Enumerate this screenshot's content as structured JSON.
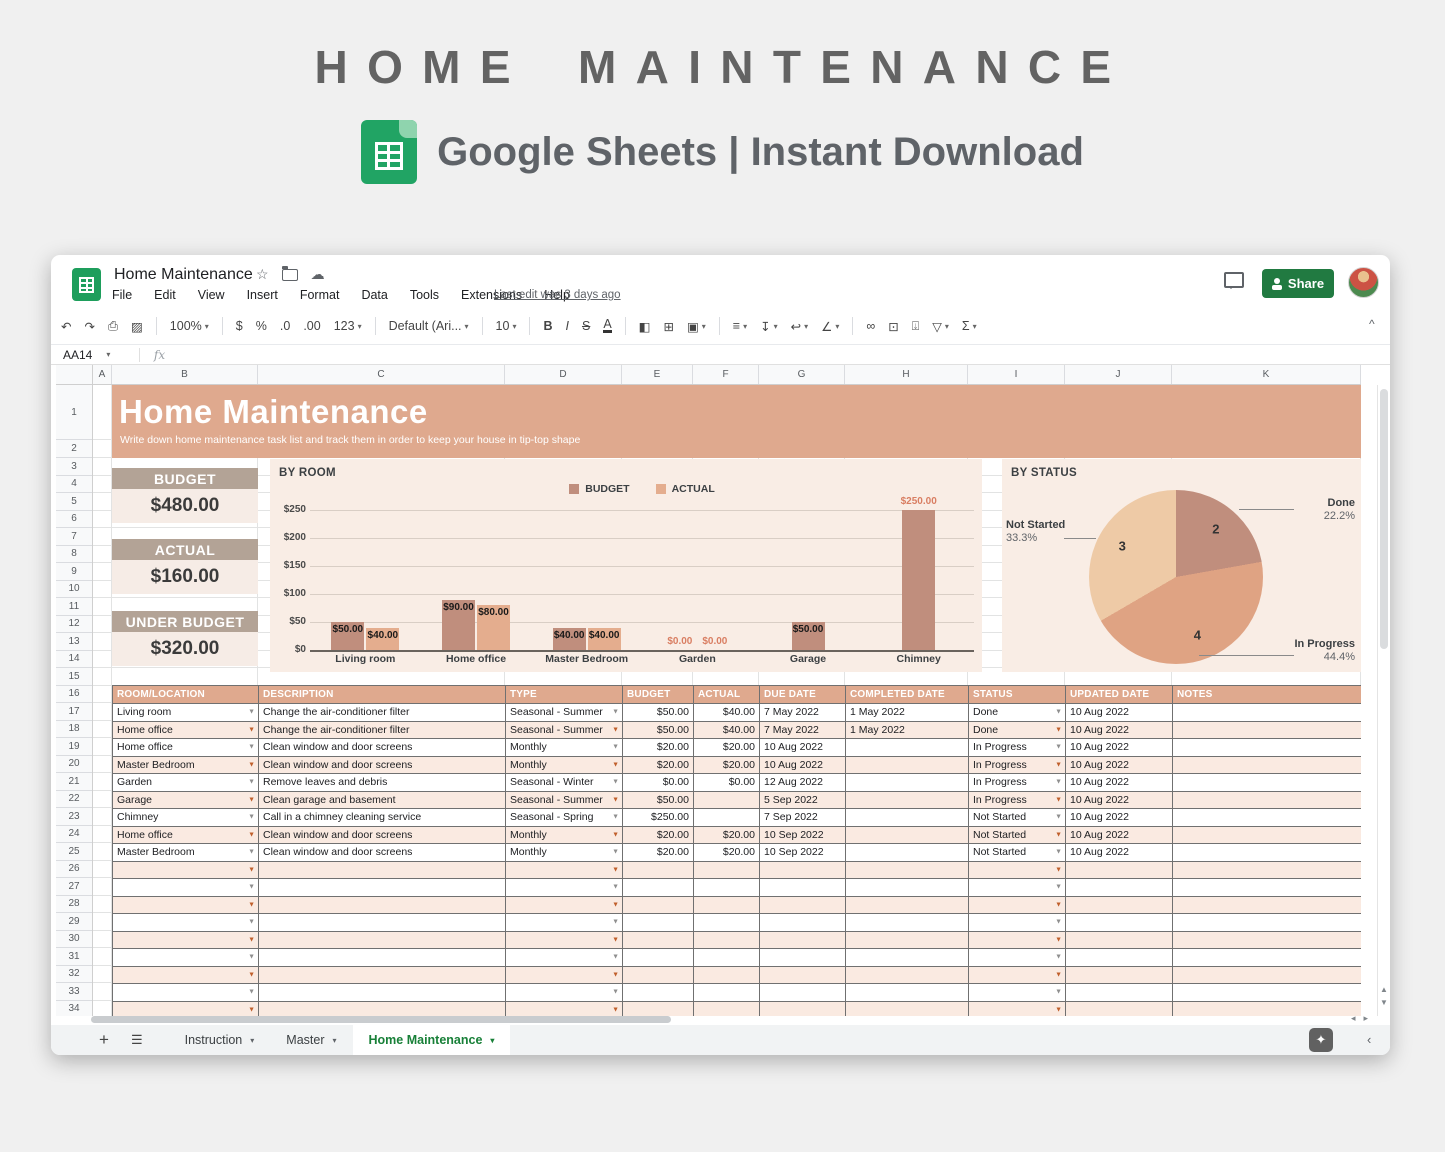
{
  "hero": {
    "title": "HOME MAINTENANCE",
    "subtitle": "Google Sheets | Instant Download"
  },
  "window": {
    "doc_title": "Home Maintenance",
    "menu_items": [
      "File",
      "Edit",
      "View",
      "Insert",
      "Format",
      "Data",
      "Tools",
      "Extensions",
      "Help"
    ],
    "last_edit": "Last edit was 3 days ago",
    "share_label": "Share",
    "name_box": "AA14",
    "fx_label": "fx",
    "collapse_glyph": "^",
    "toolbar": [
      {
        "name": "undo-icon",
        "glyph": "↶"
      },
      {
        "name": "redo-icon",
        "glyph": "↷"
      },
      {
        "name": "print-icon",
        "glyph": "⎙"
      },
      {
        "name": "paint-format-icon",
        "glyph": "▨"
      },
      {
        "name": "separator"
      },
      {
        "name": "zoom-select",
        "label": "100%",
        "caret": true
      },
      {
        "name": "separator"
      },
      {
        "name": "currency-format-icon",
        "glyph": "$"
      },
      {
        "name": "percent-format-icon",
        "glyph": "%"
      },
      {
        "name": "decrease-decimal-icon",
        "glyph": ".0"
      },
      {
        "name": "increase-decimal-icon",
        "glyph": ".00"
      },
      {
        "name": "more-formats-icon",
        "glyph": "123",
        "caret": true
      },
      {
        "name": "separator"
      },
      {
        "name": "font-select",
        "label": "Default (Ari...",
        "caret": true
      },
      {
        "name": "separator"
      },
      {
        "name": "font-size-select",
        "label": "10",
        "caret": true
      },
      {
        "name": "separator"
      },
      {
        "name": "bold-icon",
        "glyph": "B",
        "style": "tb-bold"
      },
      {
        "name": "italic-icon",
        "glyph": "I",
        "style": "tb-italic"
      },
      {
        "name": "strikethrough-icon",
        "glyph": "S",
        "style": "tb-strike"
      },
      {
        "name": "text-color-icon",
        "glyph": "A",
        "style": "tb-underl"
      },
      {
        "name": "separator"
      },
      {
        "name": "fill-color-icon",
        "glyph": "◧"
      },
      {
        "name": "borders-icon",
        "glyph": "⊞"
      },
      {
        "name": "merge-cells-icon",
        "glyph": "▣",
        "caret": true
      },
      {
        "name": "separator"
      },
      {
        "name": "horizontal-align-icon",
        "glyph": "≡",
        "caret": true
      },
      {
        "name": "vertical-align-icon",
        "glyph": "↧",
        "caret": true
      },
      {
        "name": "text-wrap-icon",
        "glyph": "↩",
        "caret": true
      },
      {
        "name": "text-rotation-icon",
        "glyph": "∠",
        "caret": true
      },
      {
        "name": "separator"
      },
      {
        "name": "insert-link-icon",
        "glyph": "∞"
      },
      {
        "name": "insert-comment-icon",
        "glyph": "⊡"
      },
      {
        "name": "insert-chart-icon",
        "glyph": "⍗"
      },
      {
        "name": "filter-icon",
        "glyph": "▽",
        "caret": true
      },
      {
        "name": "functions-icon",
        "glyph": "Σ",
        "caret": true
      }
    ],
    "column_letters": [
      "A",
      "B",
      "C",
      "D",
      "E",
      "F",
      "G",
      "H",
      "I",
      "J",
      "K"
    ],
    "row_count": 34,
    "tabs": [
      {
        "label": "Instruction",
        "active": false
      },
      {
        "label": "Master",
        "active": false
      },
      {
        "label": "Home Maintenance",
        "active": true
      }
    ]
  },
  "sheet": {
    "banner": {
      "title": "Home Maintenance",
      "subtitle": "Write down home maintenance task list and track them in order to keep your house in tip-top shape"
    },
    "cards": [
      {
        "label": "BUDGET",
        "value": "$480.00"
      },
      {
        "label": "ACTUAL",
        "value": "$160.00"
      },
      {
        "label": "UNDER BUDGET",
        "value": "$320.00"
      }
    ],
    "table": {
      "headers": [
        "ROOM/LOCATION",
        "DESCRIPTION",
        "TYPE",
        "BUDGET",
        "ACTUAL",
        "DUE DATE",
        "COMPLETED DATE",
        "STATUS",
        "UPDATED DATE",
        "NOTES"
      ],
      "dropdown_columns": [
        0,
        2,
        7
      ],
      "money_columns": [
        3,
        4
      ],
      "rows": [
        [
          "Living room",
          "Change the air-conditioner filter",
          "Seasonal - Summer",
          "$50.00",
          "$40.00",
          "7 May 2022",
          "1 May 2022",
          "Done",
          "10 Aug 2022",
          ""
        ],
        [
          "Home office",
          "Change the air-conditioner filter",
          "Seasonal - Summer",
          "$50.00",
          "$40.00",
          "7 May 2022",
          "1 May 2022",
          "Done",
          "10 Aug 2022",
          ""
        ],
        [
          "Home office",
          "Clean window and door screens",
          "Monthly",
          "$20.00",
          "$20.00",
          "10 Aug 2022",
          "",
          "In Progress",
          "10 Aug 2022",
          ""
        ],
        [
          "Master Bedroom",
          "Clean window and door screens",
          "Monthly",
          "$20.00",
          "$20.00",
          "10 Aug 2022",
          "",
          "In Progress",
          "10 Aug 2022",
          ""
        ],
        [
          "Garden",
          "Remove leaves and debris",
          "Seasonal - Winter",
          "$0.00",
          "$0.00",
          "12 Aug 2022",
          "",
          "In Progress",
          "10 Aug 2022",
          ""
        ],
        [
          "Garage",
          "Clean garage and basement",
          "Seasonal - Summer",
          "$50.00",
          "",
          "5 Sep 2022",
          "",
          "In Progress",
          "10 Aug 2022",
          ""
        ],
        [
          "Chimney",
          "Call in a chimney cleaning service",
          "Seasonal - Spring",
          "$250.00",
          "",
          "7 Sep 2022",
          "",
          "Not Started",
          "10 Aug 2022",
          ""
        ],
        [
          "Home office",
          "Clean window and door screens",
          "Monthly",
          "$20.00",
          "$20.00",
          "10 Sep 2022",
          "",
          "Not Started",
          "10 Aug 2022",
          ""
        ],
        [
          "Master Bedroom",
          "Clean window and door screens",
          "Monthly",
          "$20.00",
          "$20.00",
          "10 Sep 2022",
          "",
          "Not Started",
          "10 Aug 2022",
          ""
        ]
      ],
      "empty_row_count": 9
    }
  },
  "chart_data": [
    {
      "type": "bar",
      "title": "BY ROOM",
      "categories": [
        "Living room",
        "Home office",
        "Master Bedroom",
        "Garden",
        "Garage",
        "Chimney"
      ],
      "series": [
        {
          "name": "BUDGET",
          "color": "#c08e7d",
          "values": [
            50,
            90,
            40,
            0,
            50,
            250
          ],
          "labels": [
            "$50.00",
            "$90.00",
            "$40.00",
            "$0.00",
            "$50.00",
            "$250.00"
          ],
          "label_pos": [
            "in",
            "in",
            "in",
            "out",
            "in",
            "out"
          ]
        },
        {
          "name": "ACTUAL",
          "color": "#e4ad8e",
          "values": [
            40,
            80,
            40,
            0,
            null,
            null
          ],
          "labels": [
            "$40.00",
            "$80.00",
            "$40.00",
            "$0.00",
            "",
            ""
          ],
          "label_pos": [
            "in",
            "in",
            "in",
            "out",
            null,
            null
          ]
        }
      ],
      "yticks": [
        "$250",
        "$200",
        "$150",
        "$100",
        "$50",
        "$0"
      ],
      "ylim": [
        0,
        250
      ],
      "grid": true,
      "legend_position": "top"
    },
    {
      "type": "pie",
      "title": "BY STATUS",
      "slices": [
        {
          "label": "Done",
          "count": "2",
          "pct": "22.2%",
          "value": 22.2,
          "color": "#c08e7d"
        },
        {
          "label": "In Progress",
          "count": "4",
          "pct": "44.4%",
          "value": 44.4,
          "color": "#dfa383"
        },
        {
          "label": "Not Started",
          "count": "3",
          "pct": "33.3%",
          "value": 33.3,
          "color": "#eecaa6"
        }
      ],
      "start_angle_deg": 0,
      "clockwise": true
    }
  ],
  "colors": {
    "banner": "#dfa98e",
    "card_header": "#b3a396",
    "card_body": "#f6ece6",
    "panel_bg": "#f9ede5",
    "table_header": "#dfa98e",
    "row_pink": "#faeae1",
    "dropdown_orange": "#c05f2b",
    "outside_label_salmon": "#d97e62",
    "share_green": "#217a41",
    "active_tab_green": "#188038",
    "sheets_green": "#21a464"
  }
}
